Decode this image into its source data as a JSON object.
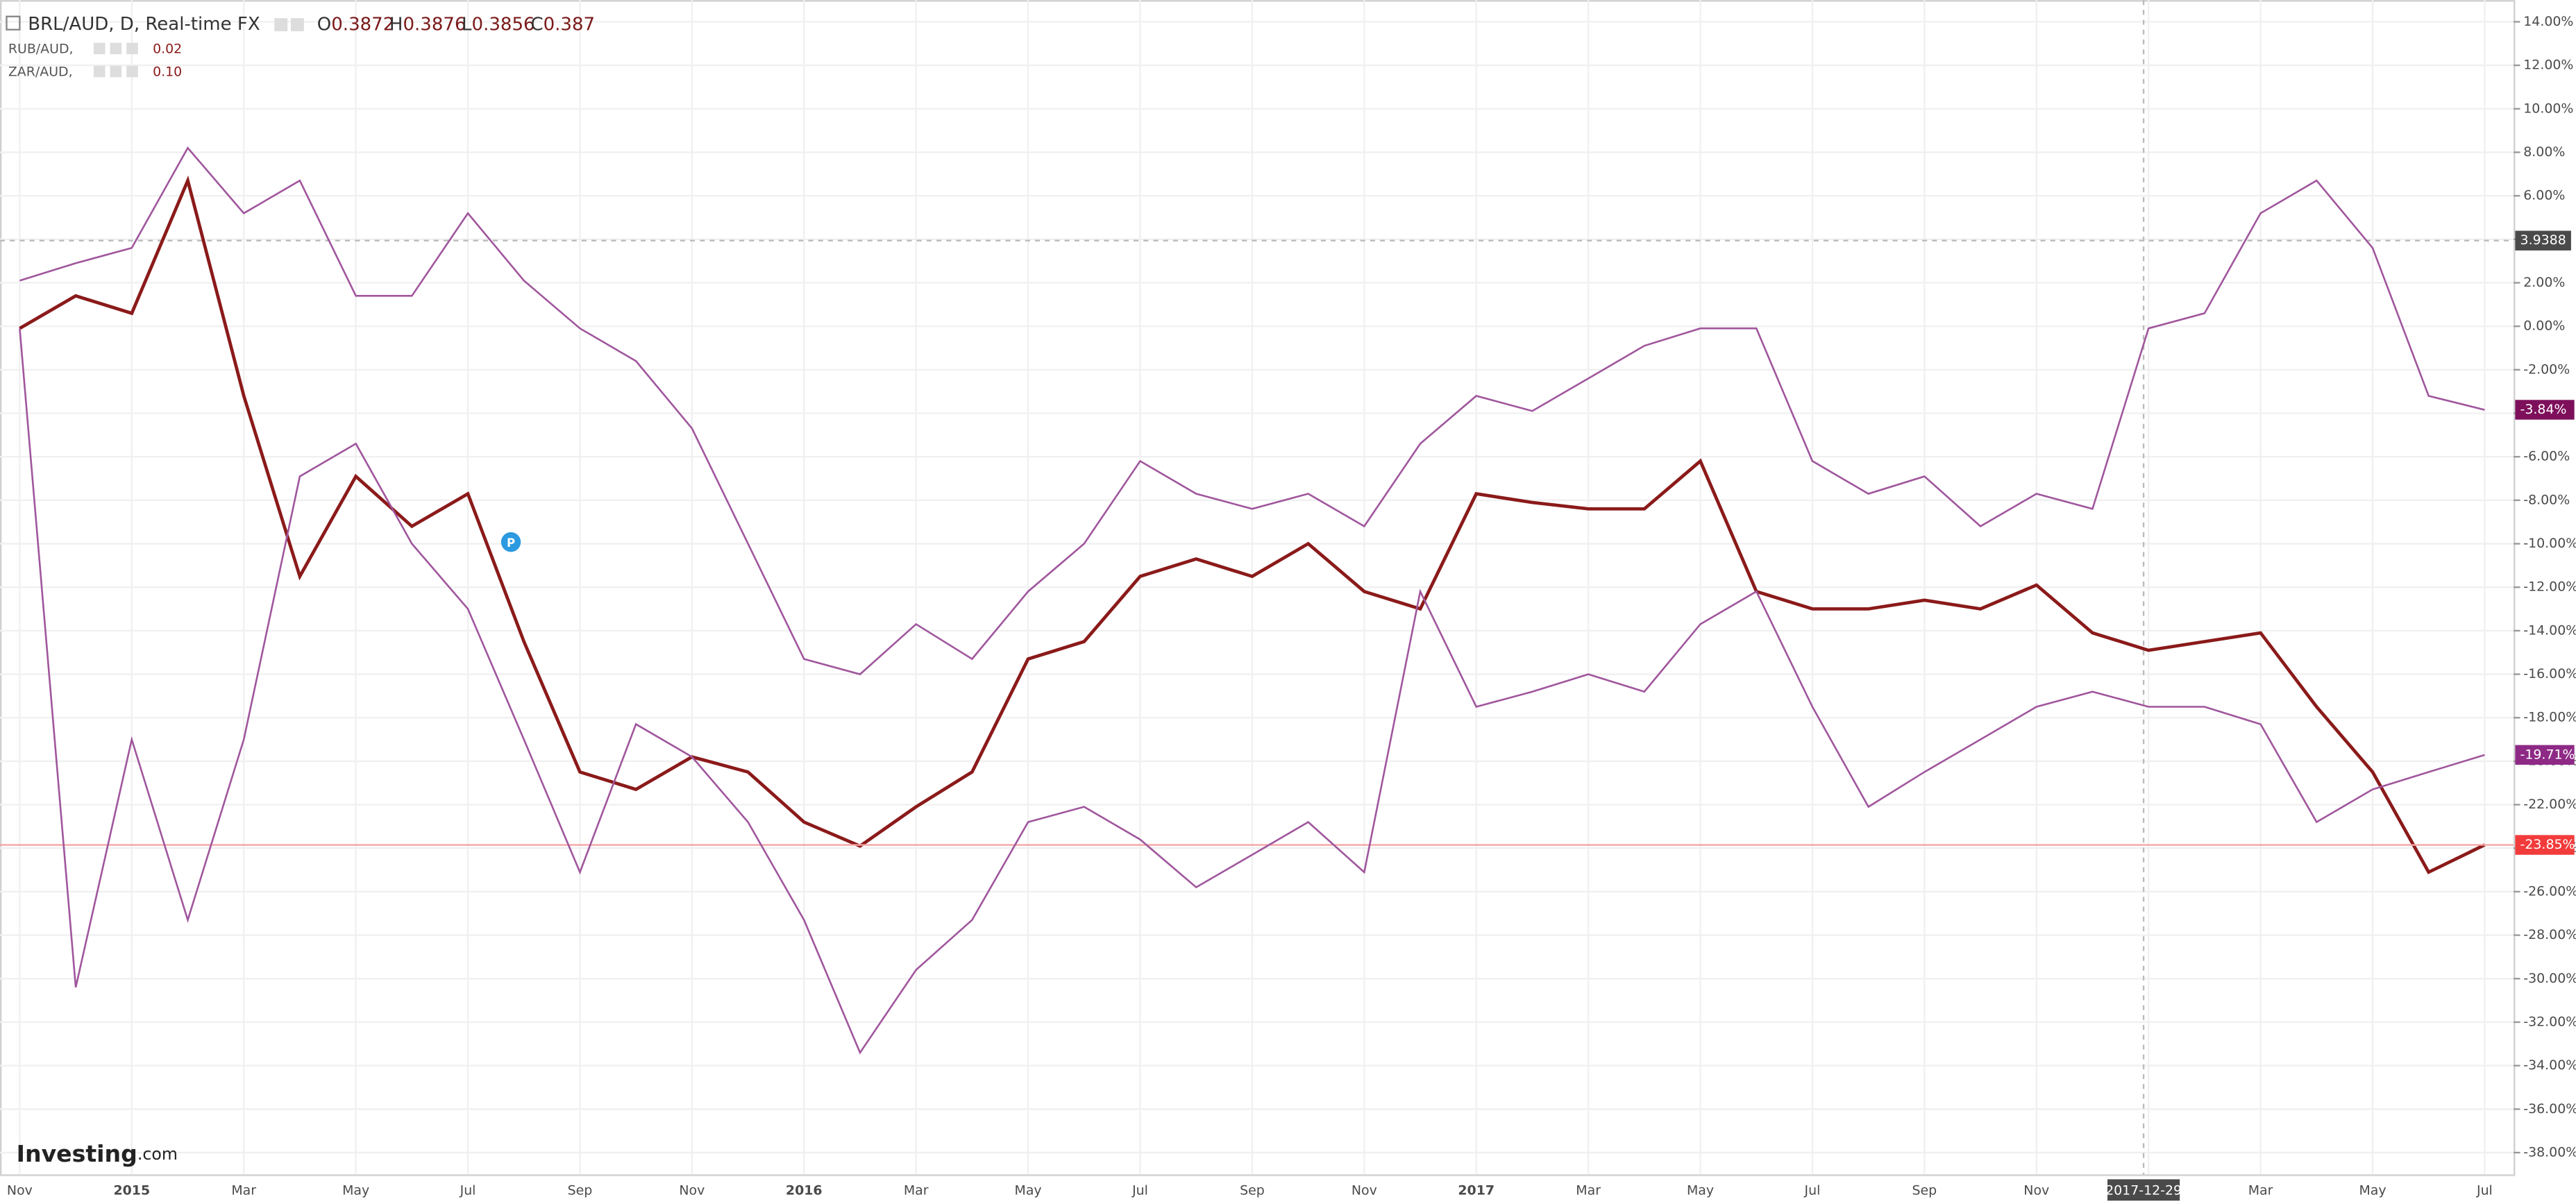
{
  "chart_data": {
    "type": "line",
    "title": "BRL/AUD, D, Real-time FX",
    "ohlc": [
      {
        "key": "O",
        "value": 0.3872
      },
      {
        "key": "H",
        "value": 0.3876
      },
      {
        "key": "L",
        "value": 0.3856
      },
      {
        "key": "C",
        "value": 0.387
      }
    ],
    "brand": [
      "Investing",
      ".com"
    ],
    "categories": [
      "Nov",
      null,
      "2015",
      null,
      "Mar",
      null,
      "May",
      null,
      "Jul",
      null,
      "Sep",
      null,
      "Nov",
      null,
      "2016",
      null,
      "Mar",
      null,
      "May",
      null,
      "Jul",
      null,
      "Sep",
      null,
      "Nov",
      null,
      "2017",
      null,
      "Mar",
      null,
      "May",
      null,
      "Jul",
      null,
      "Sep",
      null,
      "Nov",
      null,
      "2017-12-29",
      null,
      "Mar",
      null,
      "May",
      null,
      "Jul"
    ],
    "series": [
      {
        "color": "#8b1a1a",
        "label_color": "#f23b3b",
        "values": [
          -0.1,
          1.4,
          0.6,
          6.7,
          -3.2,
          -11.5,
          -6.9,
          -9.2,
          -7.7,
          -14.5,
          -20.5,
          -21.3,
          -19.8,
          -20.5,
          -22.8,
          -23.9,
          -22.1,
          -20.5,
          -15.3,
          -14.5,
          -11.5,
          -10.7,
          -11.5,
          -10.0,
          -12.2,
          -13.0,
          -7.7,
          -8.1,
          -8.4,
          -8.4,
          -6.2,
          -12.2,
          -13.0,
          -13.0,
          -12.6,
          -13.0,
          -11.9,
          -14.1,
          -14.9,
          -14.5,
          -14.1,
          -17.5,
          -20.5,
          -25.1,
          -23.85
        ],
        "value_labels": [
          null,
          null,
          null,
          null,
          null,
          null,
          null,
          null,
          null,
          null,
          null,
          null,
          null,
          null,
          null,
          null,
          null,
          null,
          null,
          null,
          null,
          null,
          null,
          null,
          null,
          null,
          null,
          null,
          null,
          null,
          null,
          null,
          null,
          null,
          null,
          null,
          null,
          null,
          null,
          null,
          null,
          null,
          null,
          null,
          "-23.85%"
        ]
      },
      {
        "name": "RUB/AUD,",
        "legend_value": 0.02,
        "color": "#a0569d",
        "label_color": "#8e2a86",
        "values": [
          -0.1,
          -30.4,
          -19.0,
          -27.3,
          -19.0,
          -6.9,
          -5.4,
          -10.0,
          -13.0,
          -19.0,
          -25.1,
          -18.3,
          -19.8,
          -22.8,
          -27.3,
          -33.4,
          -29.6,
          -27.3,
          -22.8,
          -22.1,
          -23.6,
          -25.8,
          -24.3,
          -22.8,
          -25.1,
          -12.2,
          -17.5,
          -16.8,
          -16.0,
          -16.8,
          -13.7,
          -12.2,
          -17.5,
          -22.1,
          -20.5,
          -19.0,
          -17.5,
          -16.8,
          -17.5,
          -17.5,
          -18.3,
          -22.8,
          -21.3,
          -20.5,
          -19.71
        ],
        "value_labels": [
          null,
          null,
          null,
          null,
          null,
          null,
          null,
          null,
          null,
          null,
          null,
          null,
          null,
          null,
          null,
          null,
          null,
          null,
          null,
          null,
          null,
          null,
          null,
          null,
          null,
          null,
          null,
          null,
          null,
          null,
          null,
          null,
          null,
          null,
          null,
          null,
          null,
          null,
          null,
          null,
          null,
          null,
          null,
          null,
          "-19.71%"
        ]
      },
      {
        "name": "ZAR/AUD,",
        "legend_value": {
          "value": 0.1,
          "label": "0.10"
        },
        "color": "#a0569d",
        "label_color": "#7d0f5b",
        "values": [
          2.1,
          2.9,
          3.6,
          8.2,
          5.2,
          6.7,
          1.4,
          1.4,
          5.2,
          2.1,
          -0.1,
          -1.6,
          -4.7,
          -10.0,
          -15.3,
          -16.0,
          -13.7,
          -15.3,
          -12.2,
          -10.0,
          -6.2,
          -7.7,
          -8.4,
          -7.7,
          -9.2,
          -5.4,
          -3.2,
          -3.9,
          -2.4,
          -0.9,
          -0.1,
          -0.1,
          -6.2,
          -7.7,
          -6.9,
          -9.2,
          -7.7,
          -8.4,
          -0.1,
          0.6,
          5.2,
          6.7,
          3.6,
          -3.2,
          -3.84
        ],
        "value_labels": [
          null,
          null,
          null,
          null,
          null,
          null,
          null,
          null,
          null,
          null,
          null,
          null,
          null,
          null,
          null,
          null,
          null,
          null,
          null,
          null,
          null,
          null,
          null,
          null,
          null,
          null,
          null,
          null,
          null,
          null,
          null,
          null,
          null,
          null,
          null,
          null,
          null,
          null,
          null,
          null,
          null,
          null,
          null,
          null,
          "-3.84%"
        ]
      }
    ],
    "crosshair_y": 3.9388,
    "ylim": [
      -39,
      15
    ],
    "yticks": [
      {
        "value": 14,
        "label": "14.00%"
      },
      {
        "value": 12,
        "label": "12.00%"
      },
      {
        "value": 10,
        "label": "10.00%"
      },
      {
        "value": 8,
        "label": "8.00%"
      },
      {
        "value": 6,
        "label": "6.00%"
      },
      {
        "value": 4,
        "label": "4.00%"
      },
      {
        "value": 2,
        "label": "2.00%"
      },
      {
        "value": 0,
        "label": "0.00%"
      },
      {
        "value": -2,
        "label": "-2.00%"
      },
      {
        "value": -4,
        "label": "-4.00%"
      },
      {
        "value": -6,
        "label": "-6.00%"
      },
      {
        "value": -8,
        "label": "-8.00%"
      },
      {
        "value": -10,
        "label": "-10.00%"
      },
      {
        "value": -12,
        "label": "-12.00%"
      },
      {
        "value": -14,
        "label": "-14.00%"
      },
      {
        "value": -16,
        "label": "-16.00%"
      },
      {
        "value": -18,
        "label": "-18.00%"
      },
      {
        "value": -20,
        "label": "-20.00%"
      },
      {
        "value": -22,
        "label": "-22.00%"
      },
      {
        "value": -24,
        "label": "-24.00%"
      },
      {
        "value": -26,
        "label": "-26.00%"
      },
      {
        "value": -28,
        "label": "-28.00%"
      },
      {
        "value": -30,
        "label": "-30.00%"
      },
      {
        "value": -32,
        "label": "-32.00%"
      },
      {
        "value": -34,
        "label": "-34.00%"
      },
      {
        "value": -36,
        "label": "-36.00%"
      },
      {
        "value": -38,
        "label": "-38.00%"
      }
    ],
    "grid": true
  }
}
